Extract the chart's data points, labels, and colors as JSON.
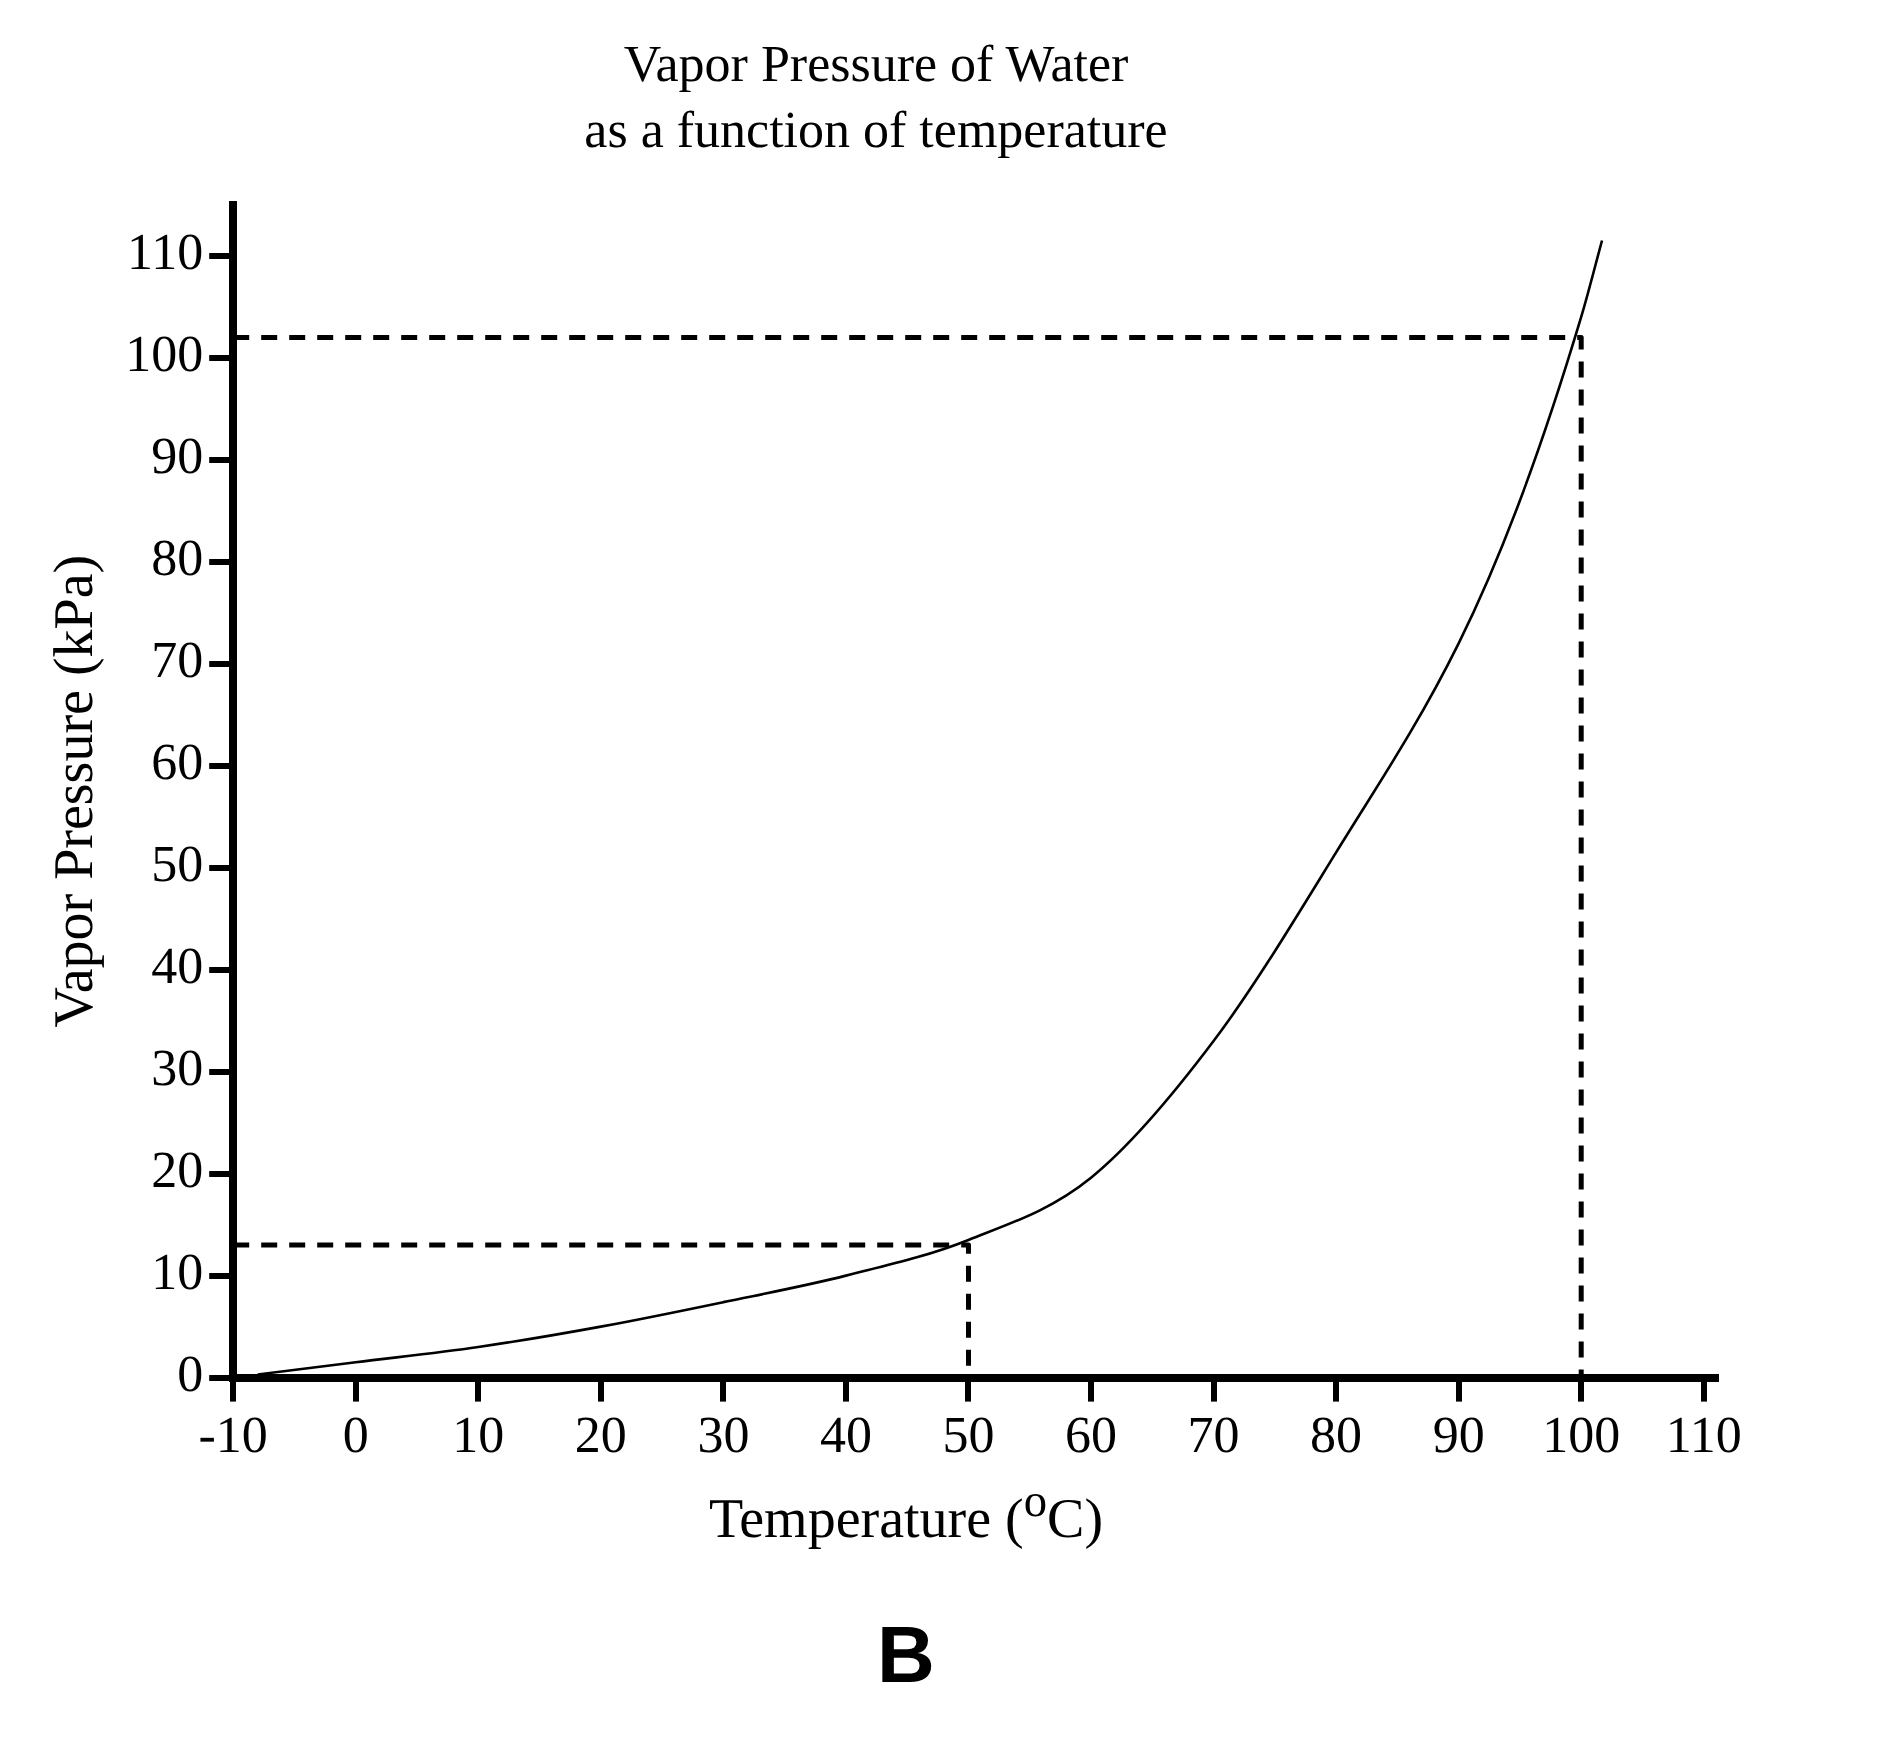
{
  "chart_data": {
    "type": "line",
    "title": "Vapor Pressure of Water",
    "subtitle": "as a function of temperature",
    "xlabel": "Temperature ($^{o}$C)",
    "ylabel": "Vapor Pressure (kPa)",
    "annotations": [
      "B"
    ],
    "xlim": [
      -10,
      111
    ],
    "xticks": [
      -10,
      0,
      10,
      20,
      30,
      40,
      50,
      60,
      70,
      80,
      90,
      100,
      110
    ],
    "ylim": [
      0,
      115
    ],
    "yticks": [
      0,
      10,
      20,
      30,
      40,
      50,
      60,
      70,
      80,
      90,
      100,
      110
    ],
    "series": [
      {
        "color": "#000000",
        "x": [
          -8,
          0,
          10,
          20,
          30,
          40,
          50,
          60,
          70,
          80,
          90,
          95,
          100,
          101.7
        ],
        "values": [
          0.3,
          1.5,
          3,
          5,
          7.4,
          10,
          13.5,
          19.6,
          33,
          51.5,
          72,
          86,
          104,
          111.5
        ]
      },
      {
        "color": "#000000",
        "line_style": "dashed",
        "x": [
          -10,
          50,
          50
        ],
        "values": [
          13,
          13,
          0
        ]
      },
      {
        "color": "#000000",
        "line_style": "dashed",
        "x": [
          -10,
          100,
          100
        ],
        "values": [
          102,
          102,
          0
        ]
      }
    ]
  }
}
